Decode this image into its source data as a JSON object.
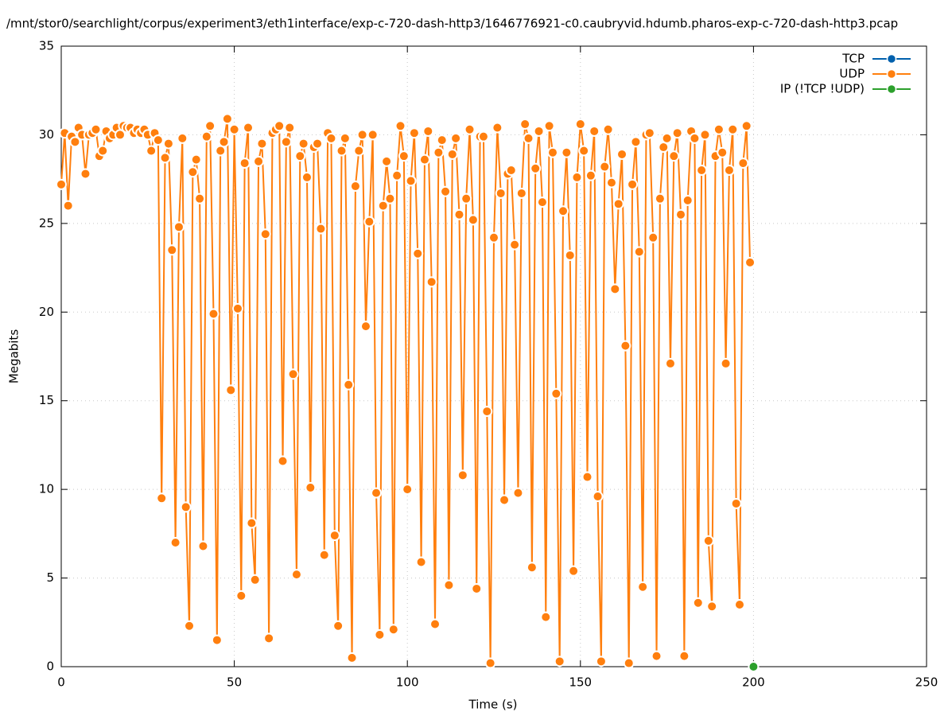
{
  "chart_data": {
    "type": "line",
    "title": "/mnt/stor0/searchlight/corpus/experiment3/eth1interface/exp-c-720-dash-http3/1646776921-c0.caubryvid.hdumb.pharos-exp-c-720-dash-http3.pcap",
    "x_label": "Time (s)",
    "y_label": "Megabits",
    "xlim": [
      0,
      250
    ],
    "xticks": [
      0,
      50,
      100,
      150,
      200,
      250
    ],
    "ylim": [
      0,
      35
    ],
    "yticks": [
      0,
      5,
      10,
      15,
      20,
      25,
      30,
      35
    ],
    "grid": true,
    "legend": "top-right",
    "series": [
      {
        "name": "TCP",
        "color": "#0060ad",
        "x": [],
        "values": []
      },
      {
        "name": "UDP",
        "color": "#ff7f0e",
        "x": [
          0,
          1,
          2,
          3,
          4,
          5,
          6,
          7,
          8,
          9,
          10,
          11,
          12,
          13,
          14,
          15,
          16,
          17,
          18,
          19,
          20,
          21,
          22,
          23,
          24,
          25,
          26,
          27,
          28,
          29,
          30,
          31,
          32,
          33,
          34,
          35,
          36,
          37,
          38,
          39,
          40,
          41,
          42,
          43,
          44,
          45,
          46,
          47,
          48,
          49,
          50,
          51,
          52,
          53,
          54,
          55,
          56,
          57,
          58,
          59,
          60,
          61,
          62,
          63,
          64,
          65,
          66,
          67,
          68,
          69,
          70,
          71,
          72,
          73,
          74,
          75,
          76,
          77,
          78,
          79,
          80,
          81,
          82,
          83,
          84,
          85,
          86,
          87,
          88,
          89,
          90,
          91,
          92,
          93,
          94,
          95,
          96,
          97,
          98,
          99,
          100,
          101,
          102,
          103,
          104,
          105,
          106,
          107,
          108,
          109,
          110,
          111,
          112,
          113,
          114,
          115,
          116,
          117,
          118,
          119,
          120,
          121,
          122,
          123,
          124,
          125,
          126,
          127,
          128,
          129,
          130,
          131,
          132,
          133,
          134,
          135,
          136,
          137,
          138,
          139,
          140,
          141,
          142,
          143,
          144,
          145,
          146,
          147,
          148,
          149,
          150,
          151,
          152,
          153,
          154,
          155,
          156,
          157,
          158,
          159,
          160,
          161,
          162,
          163,
          164,
          165,
          166,
          167,
          168,
          169,
          170,
          171,
          172,
          173,
          174,
          175,
          176,
          177,
          178,
          179,
          180,
          181,
          182,
          183,
          184,
          185,
          186,
          187,
          188,
          189,
          190,
          191,
          192,
          193,
          194,
          195,
          196,
          197,
          198,
          199
        ],
        "values": [
          27.2,
          30.1,
          26.0,
          29.9,
          29.6,
          30.4,
          30.0,
          27.8,
          30.0,
          30.1,
          30.3,
          28.8,
          29.1,
          30.2,
          29.8,
          30.0,
          30.4,
          30.0,
          30.5,
          30.4,
          30.4,
          30.1,
          30.3,
          30.1,
          30.3,
          30.0,
          29.1,
          30.1,
          29.7,
          9.5,
          28.7,
          29.5,
          23.5,
          7.0,
          24.8,
          29.8,
          9.0,
          2.3,
          27.9,
          28.6,
          26.4,
          6.8,
          29.9,
          30.5,
          19.9,
          1.5,
          29.1,
          29.6,
          30.9,
          15.6,
          30.3,
          20.2,
          4.0,
          28.4,
          30.4,
          8.1,
          4.9,
          28.5,
          29.5,
          24.4,
          1.6,
          30.1,
          30.3,
          30.5,
          11.6,
          29.6,
          30.4,
          16.5,
          5.2,
          28.8,
          29.5,
          27.6,
          10.1,
          29.3,
          29.5,
          24.7,
          6.3,
          30.1,
          29.8,
          7.4,
          2.3,
          29.1,
          29.8,
          15.9,
          0.5,
          27.1,
          29.1,
          30.0,
          19.2,
          25.1,
          30.0,
          9.8,
          1.8,
          26.0,
          28.5,
          26.4,
          2.1,
          27.7,
          30.5,
          28.8,
          10.0,
          27.4,
          30.1,
          23.3,
          5.9,
          28.6,
          30.2,
          21.7,
          2.4,
          29.0,
          29.7,
          26.8,
          4.6,
          28.9,
          29.8,
          25.5,
          10.8,
          26.4,
          30.3,
          25.2,
          4.4,
          29.9,
          29.9,
          14.4,
          0.2,
          24.2,
          30.4,
          26.7,
          9.4,
          27.8,
          28.0,
          23.8,
          9.8,
          26.7,
          30.6,
          29.8,
          5.6,
          28.1,
          30.2,
          26.2,
          2.8,
          30.5,
          29.0,
          15.4,
          0.3,
          25.7,
          29.0,
          23.2,
          5.4,
          27.6,
          30.6,
          29.1,
          10.7,
          27.7,
          30.2,
          9.6,
          0.3,
          28.2,
          30.3,
          27.3,
          21.3,
          26.1,
          28.9,
          18.1,
          0.2,
          27.2,
          29.6,
          23.4,
          4.5,
          30.0,
          30.1,
          24.2,
          0.6,
          26.4,
          29.3,
          29.8,
          17.1,
          28.8,
          30.1,
          25.5,
          0.6,
          26.3,
          30.2,
          29.8,
          3.6,
          28.0,
          30.0,
          7.1,
          3.4,
          28.8,
          30.3,
          29.0,
          17.1,
          28.0,
          30.3,
          9.2,
          3.5,
          28.4,
          30.5,
          22.8
        ]
      },
      {
        "name": "IP (!TCP  !UDP)",
        "color": "#2ca02c",
        "x": [
          200
        ],
        "values": [
          0
        ]
      }
    ]
  }
}
